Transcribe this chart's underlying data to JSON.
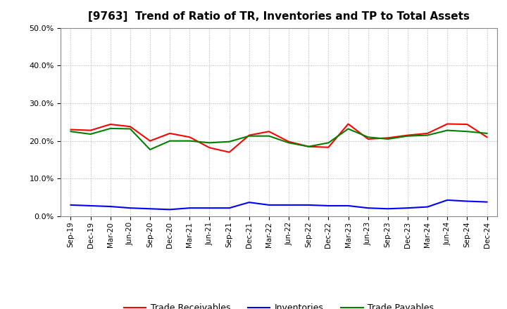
{
  "title": "[9763]  Trend of Ratio of TR, Inventories and TP to Total Assets",
  "x_labels": [
    "Sep-19",
    "Dec-19",
    "Mar-20",
    "Jun-20",
    "Sep-20",
    "Dec-20",
    "Mar-21",
    "Jun-21",
    "Sep-21",
    "Dec-21",
    "Mar-22",
    "Jun-22",
    "Sep-22",
    "Dec-22",
    "Mar-23",
    "Jun-23",
    "Sep-23",
    "Dec-23",
    "Mar-24",
    "Jun-24",
    "Sep-24",
    "Dec-24"
  ],
  "trade_receivables": [
    0.23,
    0.228,
    0.244,
    0.238,
    0.2,
    0.22,
    0.21,
    0.182,
    0.17,
    0.215,
    0.225,
    0.198,
    0.185,
    0.183,
    0.245,
    0.205,
    0.208,
    0.215,
    0.22,
    0.245,
    0.244,
    0.21
  ],
  "inventories": [
    0.03,
    0.028,
    0.026,
    0.022,
    0.02,
    0.018,
    0.022,
    0.022,
    0.022,
    0.037,
    0.03,
    0.03,
    0.03,
    0.028,
    0.028,
    0.022,
    0.02,
    0.022,
    0.025,
    0.043,
    0.04,
    0.038
  ],
  "trade_payables": [
    0.225,
    0.218,
    0.233,
    0.232,
    0.177,
    0.2,
    0.2,
    0.195,
    0.198,
    0.213,
    0.213,
    0.195,
    0.185,
    0.195,
    0.232,
    0.21,
    0.205,
    0.213,
    0.215,
    0.228,
    0.225,
    0.22
  ],
  "tr_color": "#ff0000",
  "inv_color": "#0000ff",
  "tp_color": "#008000",
  "ylim": [
    0.0,
    0.5
  ],
  "yticks": [
    0.0,
    0.1,
    0.2,
    0.3,
    0.4,
    0.5
  ],
  "background_color": "#ffffff",
  "grid_color": "#b0b0b0"
}
